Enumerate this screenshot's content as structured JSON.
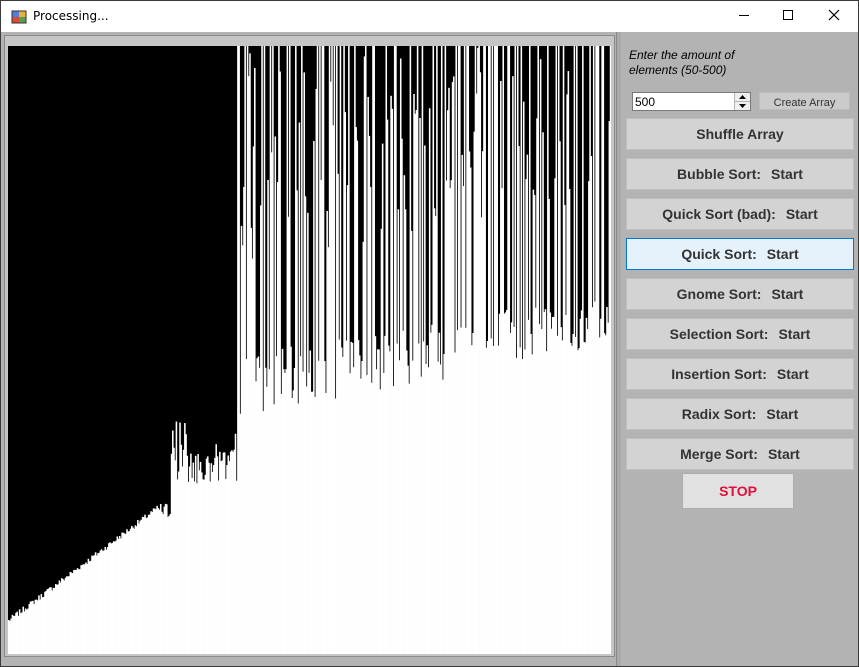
{
  "window": {
    "title": "Processing...",
    "minimize_icon": "minimize-icon",
    "maximize_icon": "maximize-icon",
    "close_icon": "close-icon"
  },
  "controls": {
    "prompt": "Enter the amount of elements (50-500)",
    "element_count": "500",
    "create_array_label": "Create Array",
    "shuffle_label": "Shuffle Array",
    "algorithms": [
      {
        "name": "Bubble Sort:",
        "action": "Start",
        "active": false
      },
      {
        "name": "Quick Sort (bad):",
        "action": "Start",
        "active": false
      },
      {
        "name": "Quick Sort:",
        "action": "Start",
        "active": true
      },
      {
        "name": "Gnome Sort:",
        "action": "Start",
        "active": false
      },
      {
        "name": "Selection Sort:",
        "action": "Start",
        "active": false
      },
      {
        "name": "Insertion Sort:",
        "action": "Start",
        "active": false
      },
      {
        "name": "Radix Sort:",
        "action": "Start",
        "active": false
      },
      {
        "name": "Merge Sort:",
        "action": "Start",
        "active": false
      }
    ],
    "stop_label": "STOP"
  },
  "visualization": {
    "background": "#000000",
    "bar_color": "#ffffff",
    "accent_active": "#0078d7",
    "stop_color": "#e0103c"
  }
}
